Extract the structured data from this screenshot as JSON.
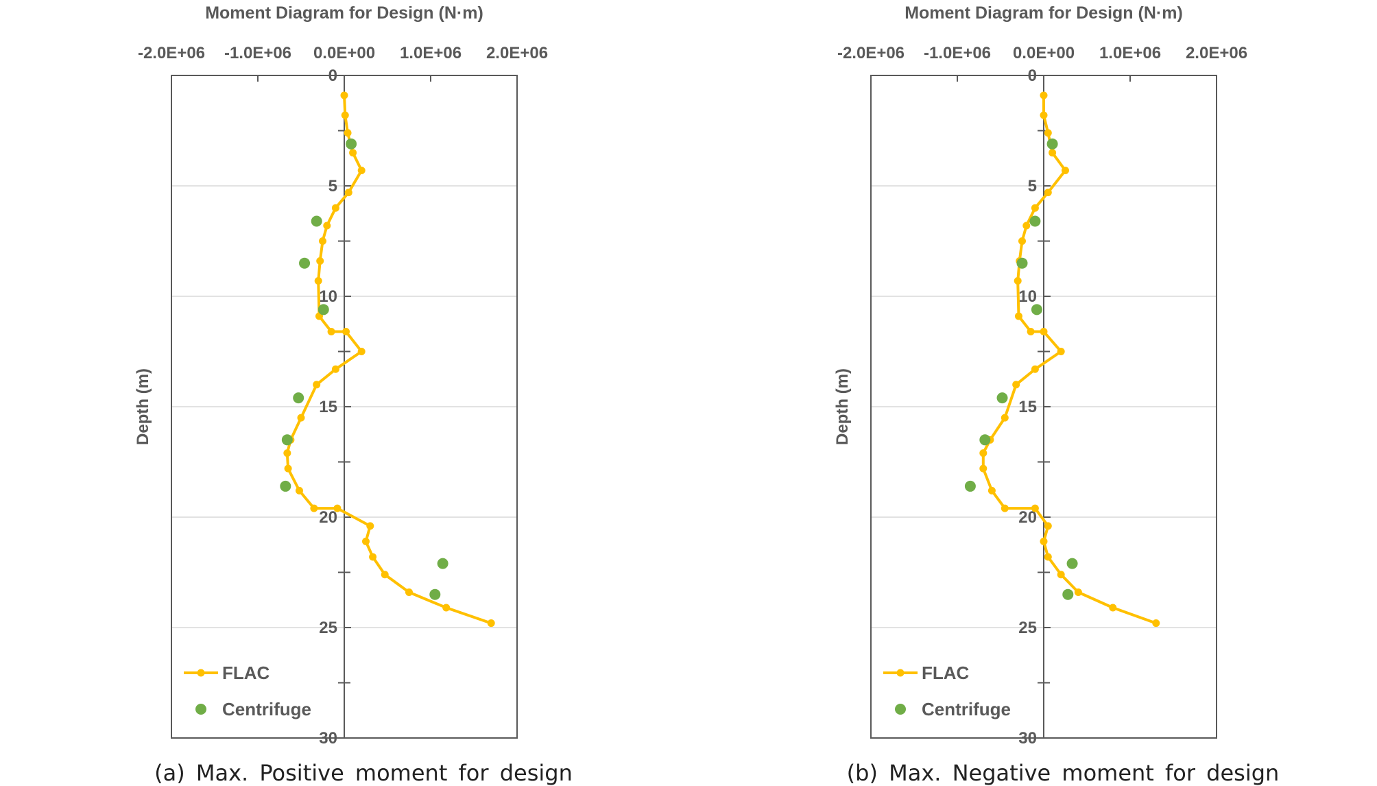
{
  "figure": {
    "captions": [
      "(a) Max. Positive moment for design",
      "(b) Max. Negative moment for design"
    ]
  },
  "colors": {
    "flac": "#FFC000",
    "centrifuge": "#70AD47",
    "axis": "#595959",
    "text": "#595959",
    "grid": "#D9D9D9"
  },
  "chart_data": [
    {
      "type": "line",
      "title": "Moment Diagram for Design (N·m)",
      "xlabel": "",
      "ylabel": "Depth (m)",
      "xlim": [
        -2000000,
        2000000
      ],
      "ylim": [
        0,
        30
      ],
      "y_inverted": true,
      "x_axis_position": "top",
      "y_axis_crosses_at_x": 0,
      "xticks": [
        -2000000,
        -1000000,
        0,
        1000000,
        2000000
      ],
      "xtick_labels": [
        "-2.0E+06",
        "-1.0E+06",
        "0.0E+00",
        "1.0E+06",
        "2.0E+06"
      ],
      "yticks": [
        0,
        5,
        10,
        15,
        20,
        25,
        30
      ],
      "ytick_labels": [
        "0",
        "5",
        "10",
        "15",
        "20",
        "25",
        "30"
      ],
      "grid": "horizontal",
      "legend": "bottom-left",
      "series": [
        {
          "name": "FLAC",
          "style": "line-marker",
          "x": [
            0,
            10000,
            40000,
            100000,
            200000,
            50000,
            -100000,
            -200000,
            -250000,
            -280000,
            -300000,
            -290000,
            -150000,
            20000,
            200000,
            -100000,
            -320000,
            -500000,
            -620000,
            -660000,
            -650000,
            -520000,
            -350000,
            -80000,
            300000,
            250000,
            330000,
            470000,
            750000,
            1180000,
            1700000
          ],
          "y": [
            0.9,
            1.8,
            2.6,
            3.5,
            4.3,
            5.3,
            6.0,
            6.8,
            7.5,
            8.4,
            9.3,
            10.9,
            11.6,
            11.6,
            12.5,
            13.3,
            14.0,
            15.5,
            16.5,
            17.1,
            17.8,
            18.8,
            19.6,
            19.6,
            20.4,
            21.1,
            21.8,
            22.6,
            23.4,
            24.1,
            24.8
          ]
        },
        {
          "name": "Centrifuge",
          "style": "marker",
          "x": [
            80000,
            -320000,
            -460000,
            -240000,
            -530000,
            -660000,
            -680000,
            1140000,
            1050000
          ],
          "y": [
            3.1,
            6.6,
            8.5,
            10.6,
            14.6,
            16.5,
            18.6,
            22.1,
            23.5
          ]
        }
      ]
    },
    {
      "type": "line",
      "title": "Moment Diagram for Design (N·m)",
      "xlabel": "",
      "ylabel": "Depth (m)",
      "xlim": [
        -2000000,
        2000000
      ],
      "ylim": [
        0,
        30
      ],
      "y_inverted": true,
      "x_axis_position": "top",
      "y_axis_crosses_at_x": 0,
      "xticks": [
        -2000000,
        -1000000,
        0,
        1000000,
        2000000
      ],
      "xtick_labels": [
        "-2.0E+06",
        "-1.0E+06",
        "0.0E+00",
        "1.0E+06",
        "2.0E+06"
      ],
      "yticks": [
        0,
        5,
        10,
        15,
        20,
        25,
        30
      ],
      "ytick_labels": [
        "0",
        "5",
        "10",
        "15",
        "20",
        "25",
        "30"
      ],
      "grid": "horizontal",
      "legend": "bottom-left",
      "series": [
        {
          "name": "FLAC",
          "style": "line-marker",
          "x": [
            0,
            0,
            50000,
            100000,
            250000,
            50000,
            -100000,
            -200000,
            -250000,
            -280000,
            -300000,
            -290000,
            -150000,
            0,
            200000,
            -100000,
            -320000,
            -450000,
            -620000,
            -700000,
            -700000,
            -600000,
            -450000,
            -100000,
            50000,
            0,
            50000,
            200000,
            400000,
            800000,
            1300000
          ],
          "y": [
            0.9,
            1.8,
            2.6,
            3.5,
            4.3,
            5.3,
            6.0,
            6.8,
            7.5,
            8.4,
            9.3,
            10.9,
            11.6,
            11.6,
            12.5,
            13.3,
            14.0,
            15.5,
            16.5,
            17.1,
            17.8,
            18.8,
            19.6,
            19.6,
            20.4,
            21.1,
            21.8,
            22.6,
            23.4,
            24.1,
            24.8
          ]
        },
        {
          "name": "Centrifuge",
          "style": "marker",
          "x": [
            100000,
            -100000,
            -250000,
            -80000,
            -480000,
            -680000,
            -850000,
            330000,
            280000
          ],
          "y": [
            3.1,
            6.6,
            8.5,
            10.6,
            14.6,
            16.5,
            18.6,
            22.1,
            23.5
          ]
        }
      ]
    }
  ]
}
